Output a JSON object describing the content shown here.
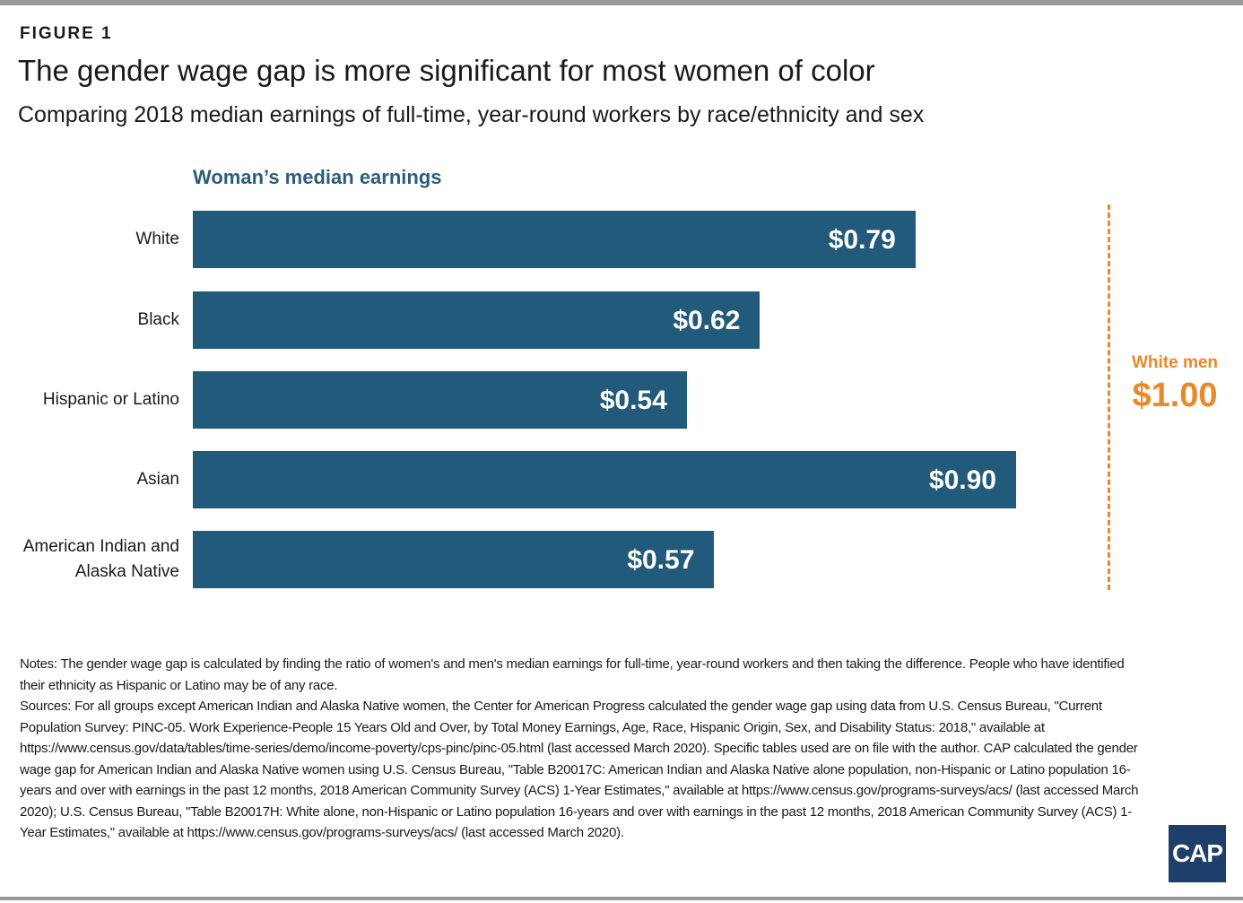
{
  "figure_label": "FIGURE 1",
  "chart_data": {
    "type": "bar",
    "orientation": "horizontal",
    "title": "The gender wage gap is more significant for most women of color",
    "subtitle": "Comparing 2018 median earnings of full-time, year-round workers by race/ethnicity and sex",
    "series_label": "Woman’s median earnings",
    "categories": [
      "White",
      "Black",
      "Hispanic or Latino",
      "Asian",
      "American Indian and Alaska Native"
    ],
    "values": [
      0.79,
      0.62,
      0.54,
      0.9,
      0.57
    ],
    "value_labels": [
      "$0.79",
      "$0.62",
      "$0.54",
      "$0.90",
      "$0.57"
    ],
    "color": "#215a7a",
    "xlim": [
      0,
      1
    ],
    "reference": {
      "name": "White men",
      "value": 1,
      "value_label": "$1.00",
      "color": "#e8892b"
    }
  },
  "notes": "Notes: The gender wage gap is calculated by finding the ratio of women's and men's median earnings for full-time, year-round workers and then taking the difference. People who have identified their ethnicity as Hispanic or Latino may be of any race.",
  "sources": "Sources: For all groups except American Indian and Alaska Native women, the Center for American Progress calculated the gender wage gap using data from U.S. Census Bureau, \"Current Population Survey: PINC-05. Work Experience-People 15 Years Old and Over, by Total Money Earnings, Age, Race, Hispanic Origin, Sex, and Disability Status: 2018,\" available at https://www.census.gov/data/tables/time-series/demo/income-poverty/cps-pinc/pinc-05.html (last accessed March 2020). Specific tables used are on file with the author. CAP calculated the gender wage gap for American Indian and Alaska Native women using U.S. Census Bureau, \"Table B20017C: American Indian and Alaska Native alone population, non-Hispanic or Latino population 16-years and over with earnings in the past 12 months, 2018 American Community Survey (ACS) 1-Year Estimates,\" available at https://www.census.gov/programs-surveys/acs/ (last accessed March 2020); U.S. Census Bureau, \"Table B20017H: White alone, non-Hispanic or Latino population 16-years and over with earnings in the past 12 months, 2018 American Community Survey (ACS) 1-Year Estimates,\" available at https://www.census.gov/programs-surveys/acs/ (last accessed March 2020).",
  "logo": "CAP"
}
